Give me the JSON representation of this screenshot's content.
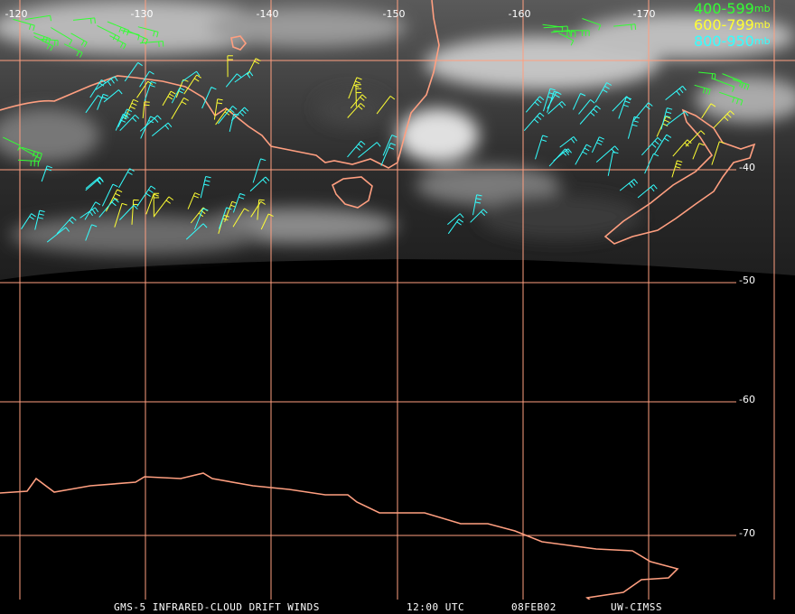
{
  "map": {
    "lon_labels": [
      "-120",
      "-130",
      "-140",
      "-150",
      "-160",
      "-170"
    ],
    "lat_labels": [
      "-40",
      "-50",
      "-60",
      "-70"
    ],
    "legend": [
      {
        "range": "400-599",
        "unit": "mb",
        "color": "#33ff33"
      },
      {
        "range": "600-799",
        "unit": "mb",
        "color": "#ffff33"
      },
      {
        "range": "800-950",
        "unit": "mb",
        "color": "#33ffff"
      }
    ],
    "footer": {
      "product": "GMS-5 INFRARED-CLOUD DRIFT WINDS",
      "time": "12:00 UTC",
      "date": "08FEB02",
      "source": "UW-CIMSS"
    }
  }
}
